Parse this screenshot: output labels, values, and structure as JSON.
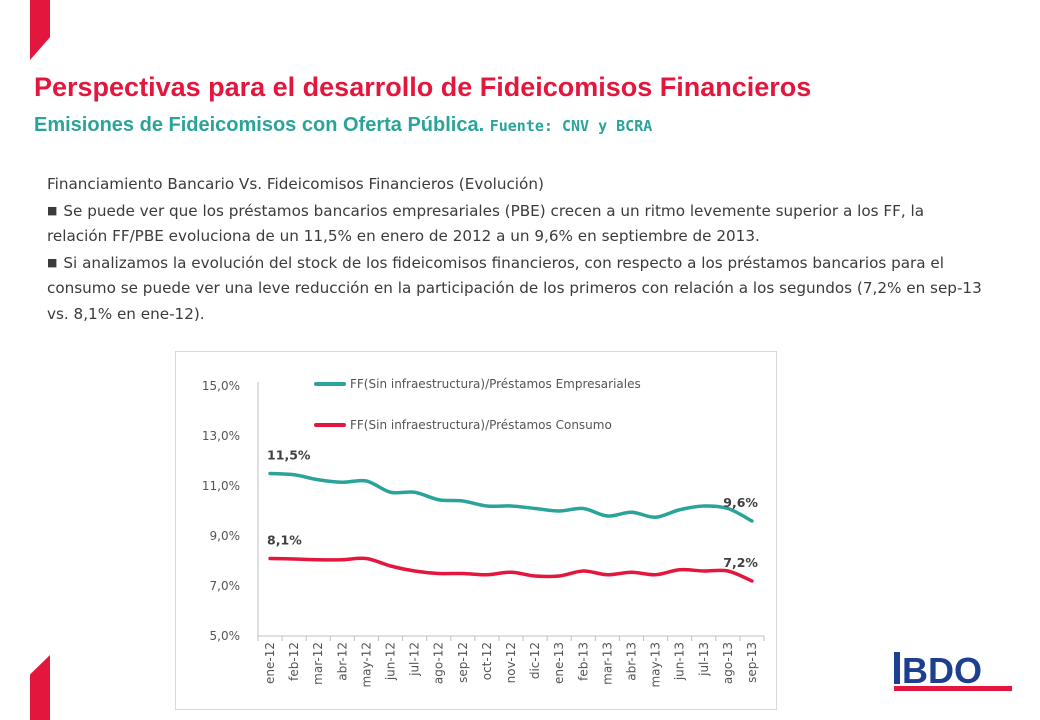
{
  "title": "Perspectivas para el desarrollo de Fideicomisos Financieros",
  "subtitle": {
    "main": "Emisiones de Fideicomisos con Oferta Pública.",
    "source": "Fuente: CNV y BCRA"
  },
  "body": {
    "heading": "Financiamiento Bancario Vs. Fideicomisos Financieros (Evolución)",
    "bullet_symbol": "■",
    "bullets": [
      "Se puede ver que los préstamos bancarios empresariales (PBE) crecen a un ritmo levemente superior a los FF,  la relación FF/PBE evoluciona de un 11,5% en enero de 2012 a un 9,6% en septiembre de 2013.",
      "Si analizamos la evolución del stock de los fideicomisos financieros, con respecto a los préstamos bancarios para el consumo se puede ver una leve reducción en la participación de los primeros con relación a los segundos (7,2% en sep-13 vs. 8,1% en ene-12)."
    ]
  },
  "chart_data": {
    "type": "line",
    "title": "",
    "xlabel": "",
    "ylabel": "",
    "ylim": [
      5.0,
      15.0
    ],
    "y_ticks": [
      "5,0%",
      "7,0%",
      "9,0%",
      "11,0%",
      "13,0%",
      "15,0%"
    ],
    "y_tick_values": [
      5,
      7,
      9,
      11,
      13,
      15
    ],
    "x": [
      "ene-12",
      "feb-12",
      "mar-12",
      "abr-12",
      "may-12",
      "jun-12",
      "jul-12",
      "ago-12",
      "sep-12",
      "oct-12",
      "nov-12",
      "dic-12",
      "ene-13",
      "feb-13",
      "mar-13",
      "abr-13",
      "may-13",
      "jun-13",
      "jul-13",
      "ago-13",
      "sep-13"
    ],
    "grid": false,
    "legend_position": "top",
    "series": [
      {
        "name": "FF(Sin infraestructura)/Préstamos Empresariales",
        "color": "#2aa39a",
        "values": [
          11.5,
          11.45,
          11.25,
          11.15,
          11.2,
          10.75,
          10.75,
          10.45,
          10.4,
          10.2,
          10.2,
          10.1,
          10.0,
          10.1,
          9.8,
          9.95,
          9.75,
          10.05,
          10.2,
          10.1,
          9.6
        ],
        "labels": [
          {
            "index": 0,
            "text": "11,5%"
          },
          {
            "index": 20,
            "text": "9,6%"
          }
        ]
      },
      {
        "name": "FF(Sin infraestructura)/Préstamos Consumo",
        "color": "#e3173e",
        "values": [
          8.1,
          8.08,
          8.05,
          8.05,
          8.1,
          7.8,
          7.6,
          7.5,
          7.5,
          7.45,
          7.55,
          7.4,
          7.4,
          7.6,
          7.45,
          7.55,
          7.45,
          7.65,
          7.6,
          7.6,
          7.2
        ],
        "labels": [
          {
            "index": 0,
            "text": "8,1%"
          },
          {
            "index": 20,
            "text": "7,2%"
          }
        ]
      }
    ]
  },
  "logo": {
    "text": "BDO",
    "color": "#1d3f8f",
    "accent": "#e3173e"
  },
  "colors": {
    "brand_red": "#e3173e",
    "teal": "#2aa39a"
  }
}
